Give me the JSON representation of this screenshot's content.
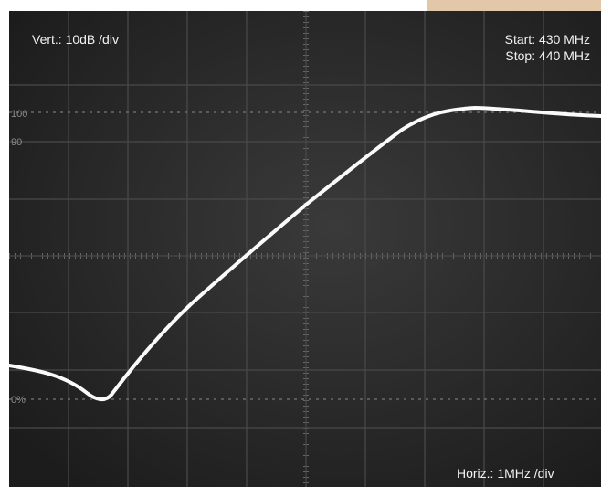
{
  "screen": {
    "vertical_scale": "Vert.: 10dB /div",
    "start": "Start: 430 MHz",
    "stop": "Stop: 440 MHz",
    "horizontal_scale": "Horiz.: 1MHz /div",
    "marker_100": "100",
    "marker_90": "90",
    "marker_0": "0%"
  }
}
